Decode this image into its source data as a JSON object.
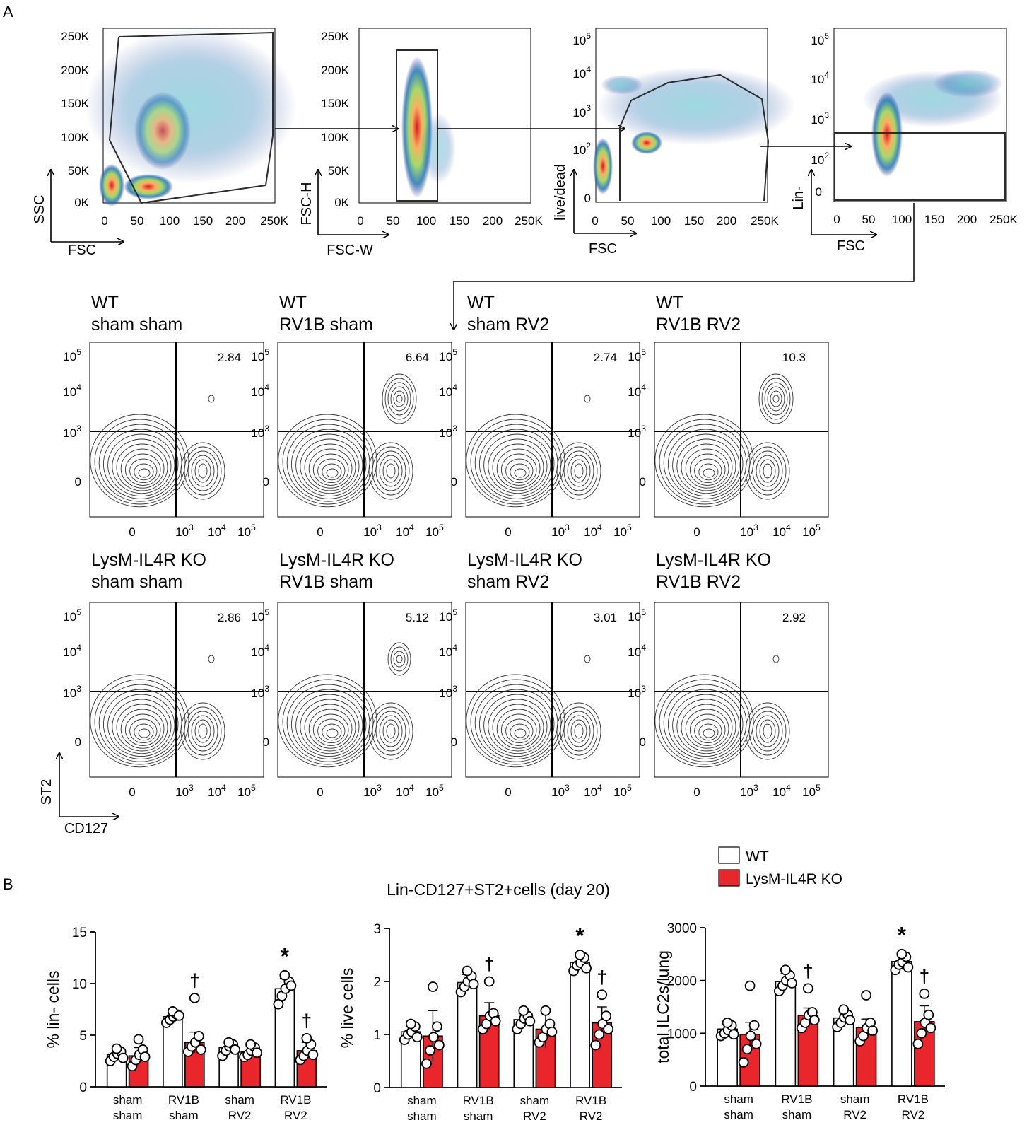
{
  "panel_labels": {
    "a": "A",
    "b": "B"
  },
  "gating": [
    {
      "x_label": "FSC",
      "y_label": "SSC",
      "x_ticks": [
        "0",
        "50",
        "100",
        "150",
        "200",
        "250K"
      ],
      "y_ticks": [
        "250K",
        "200K",
        "150K",
        "100K",
        "50K",
        "0K"
      ]
    },
    {
      "x_label": "FSC-W",
      "y_label": "FSC-H",
      "x_ticks": [
        "0",
        "50",
        "100",
        "150",
        "200",
        "250K"
      ],
      "y_ticks": [
        "250K",
        "200K",
        "150K",
        "100K",
        "50K",
        "0K"
      ]
    },
    {
      "x_label": "FSC",
      "y_label": "live/dead",
      "x_ticks": [
        "0",
        "50",
        "100",
        "150",
        "200",
        "250K"
      ],
      "y_ticks": [
        "10^5",
        "10^4",
        "10^3",
        "10^2",
        "0"
      ]
    },
    {
      "x_label": "FSC",
      "y_label": "Lin-",
      "x_ticks": [
        "0",
        "50",
        "100",
        "150",
        "200",
        "250K"
      ],
      "y_ticks": [
        "10^5",
        "10^4",
        "10^3",
        "10^2",
        "0"
      ]
    }
  ],
  "contour_panels": [
    {
      "genotype": "WT",
      "treatment": "sham sham",
      "value": "2.84"
    },
    {
      "genotype": "WT",
      "treatment": "RV1B sham",
      "value": "6.64"
    },
    {
      "genotype": "WT",
      "treatment": "sham RV2",
      "value": "2.74"
    },
    {
      "genotype": "WT",
      "treatment": "RV1B RV2",
      "value": "10.3"
    },
    {
      "genotype": "LysM-IL4R KO",
      "treatment": "sham sham",
      "value": "2.86"
    },
    {
      "genotype": "LysM-IL4R KO",
      "treatment": "RV1B sham",
      "value": "5.12"
    },
    {
      "genotype": "LysM-IL4R KO",
      "treatment": "sham RV2",
      "value": "3.01"
    },
    {
      "genotype": "LysM-IL4R KO",
      "treatment": "RV1B RV2",
      "value": "2.92"
    }
  ],
  "contour_axes": {
    "x_ticks": [
      "0",
      "10^3",
      "10^4",
      "10^5"
    ],
    "y_ticks": [
      "10^5",
      "10^4",
      "10^3",
      "0"
    ],
    "x_label": "CD127",
    "y_label": "ST2"
  },
  "legend": [
    {
      "name": "WT",
      "color": "#ffffff"
    },
    {
      "name": "LysM-IL4R KO",
      "color": "#e8262b"
    }
  ],
  "colors": {
    "wt": "#ffffff",
    "ko": "#e8262b"
  },
  "chart_title": "Lin-CD127+ST2+cells (day 20)",
  "chart_data": [
    {
      "type": "bar",
      "title": "Lin-CD127+ST2+cells (day 20)",
      "ylabel": "% lin- cells",
      "ylim": [
        0,
        15
      ],
      "yticks": [
        0,
        5,
        10,
        15
      ],
      "categories": [
        [
          "sham",
          "sham"
        ],
        [
          "RV1B",
          "sham"
        ],
        [
          "sham",
          "RV2"
        ],
        [
          "RV1B",
          "RV2"
        ]
      ],
      "series": [
        {
          "name": "WT",
          "values": [
            3.1,
            6.8,
            3.8,
            9.5
          ],
          "errors": [
            0.6,
            0.5,
            0.6,
            1.0
          ],
          "points": [
            [
              2.5,
              2.9,
              3.2,
              3.4,
              3.7,
              2.8
            ],
            [
              6.2,
              6.5,
              6.8,
              7.0,
              7.3,
              6.9
            ],
            [
              3.0,
              3.5,
              3.9,
              4.1,
              4.3,
              3.6
            ],
            [
              8.0,
              8.8,
              9.5,
              10.2,
              10.8,
              9.8
            ]
          ],
          "annotations": [
            "",
            "",
            "",
            "*"
          ]
        },
        {
          "name": "LysM-IL4R KO",
          "values": [
            3.0,
            4.3,
            3.4,
            3.5
          ],
          "errors": [
            0.8,
            1.0,
            0.5,
            0.8
          ],
          "points": [
            [
              2.0,
              2.6,
              3.1,
              3.6,
              4.6,
              2.9
            ],
            [
              3.4,
              3.9,
              4.3,
              4.9,
              8.6,
              3.6
            ],
            [
              2.9,
              3.1,
              3.5,
              3.8,
              4.1,
              3.3
            ],
            [
              2.6,
              3.0,
              3.5,
              4.1,
              4.7,
              3.1
            ]
          ],
          "annotations": [
            "",
            "†",
            "",
            "†"
          ]
        }
      ]
    },
    {
      "type": "bar",
      "ylabel": "% live cells",
      "ylim": [
        0,
        3
      ],
      "yticks": [
        0,
        1,
        2,
        3
      ],
      "categories": [
        [
          "sham",
          "sham"
        ],
        [
          "RV1B",
          "sham"
        ],
        [
          "sham",
          "RV2"
        ],
        [
          "RV1B",
          "RV2"
        ]
      ],
      "series": [
        {
          "name": "WT",
          "values": [
            1.05,
            1.98,
            1.28,
            2.36
          ],
          "errors": [
            0.12,
            0.15,
            0.12,
            0.12
          ],
          "points": [
            [
              0.9,
              1.0,
              1.05,
              1.15,
              1.2,
              0.95
            ],
            [
              1.8,
              1.9,
              2.0,
              2.1,
              2.2,
              1.95
            ],
            [
              1.1,
              1.2,
              1.3,
              1.35,
              1.45,
              1.25
            ],
            [
              2.2,
              2.3,
              2.35,
              2.45,
              2.5,
              2.25
            ]
          ],
          "annotations": [
            "",
            "",
            "",
            "*"
          ]
        },
        {
          "name": "LysM-IL4R KO",
          "values": [
            0.97,
            1.35,
            1.1,
            1.22
          ],
          "errors": [
            0.48,
            0.25,
            0.35,
            0.3
          ],
          "points": [
            [
              0.45,
              0.7,
              0.95,
              1.15,
              1.9,
              0.8
            ],
            [
              1.1,
              1.2,
              1.35,
              1.4,
              2.0,
              1.25
            ],
            [
              0.85,
              0.95,
              1.1,
              1.2,
              1.45,
              1.05
            ],
            [
              0.8,
              1.0,
              1.2,
              1.35,
              1.75,
              1.1
            ]
          ],
          "annotations": [
            "",
            "†",
            "",
            "†"
          ]
        }
      ]
    },
    {
      "type": "bar",
      "ylabel": "total ILC2s/lung",
      "ylim": [
        0,
        3000
      ],
      "yticks": [
        0,
        1000,
        2000,
        3000
      ],
      "categories": [
        [
          "sham",
          "sham"
        ],
        [
          "RV1B",
          "sham"
        ],
        [
          "sham",
          "RV2"
        ],
        [
          "RV1B",
          "RV2"
        ]
      ],
      "series": [
        {
          "name": "WT",
          "values": [
            1080,
            1980,
            1290,
            2360
          ],
          "errors": [
            120,
            150,
            120,
            120
          ],
          "points": [
            [
              950,
              1000,
              1060,
              1150,
              1200,
              980
            ],
            [
              1800,
              1900,
              2000,
              2100,
              2200,
              1950
            ],
            [
              1120,
              1200,
              1300,
              1350,
              1450,
              1250
            ],
            [
              2200,
              2300,
              2350,
              2450,
              2500,
              2250
            ]
          ],
          "annotations": [
            "",
            "",
            "",
            "*"
          ]
        },
        {
          "name": "LysM-IL4R KO",
          "values": [
            980,
            1340,
            1110,
            1220
          ],
          "errors": [
            230,
            140,
            160,
            300
          ],
          "points": [
            [
              450,
              700,
              950,
              1150,
              1900,
              800
            ],
            [
              1100,
              1200,
              1340,
              1400,
              1850,
              1250
            ],
            [
              850,
              950,
              1100,
              1200,
              1720,
              1050
            ],
            [
              800,
              1000,
              1200,
              1350,
              1750,
              1100
            ]
          ],
          "annotations": [
            "",
            "†",
            "",
            "†"
          ]
        }
      ]
    }
  ]
}
